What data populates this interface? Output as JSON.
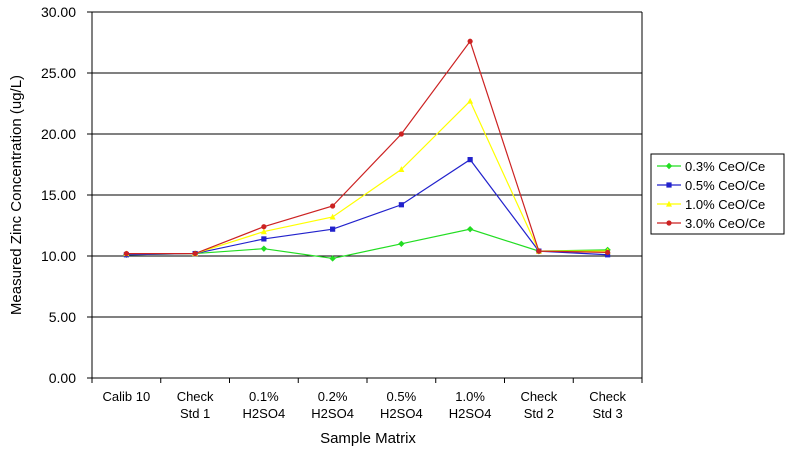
{
  "chart_data": {
    "type": "line",
    "title": "",
    "xlabel": "Sample Matrix",
    "ylabel": "Measured Zinc Concentration (ug/L)",
    "ylim": [
      0,
      30
    ],
    "ytick_step": 5,
    "ytick_labels": [
      "0.00",
      "5.00",
      "10.00",
      "15.00",
      "20.00",
      "25.00",
      "30.00"
    ],
    "categories": [
      [
        "Calib 10"
      ],
      [
        "Check",
        "Std 1"
      ],
      [
        "0.1%",
        "H2SO4"
      ],
      [
        "0.2%",
        "H2SO4"
      ],
      [
        "0.5%",
        "H2SO4"
      ],
      [
        "1.0%",
        "H2SO4"
      ],
      [
        "Check",
        "Std 2"
      ],
      [
        "Check",
        "Std 3"
      ]
    ],
    "grid": "horizontal",
    "legend_position": "right",
    "series": [
      {
        "name": "0.3% CeO/Ce",
        "color": "#22dd22",
        "marker": "diamond",
        "values": [
          10.1,
          10.2,
          10.6,
          9.8,
          11.0,
          12.2,
          10.4,
          10.5
        ]
      },
      {
        "name": "0.5% CeO/Ce",
        "color": "#2222cc",
        "marker": "square",
        "values": [
          10.1,
          10.2,
          11.4,
          12.2,
          14.2,
          17.9,
          10.4,
          10.1
        ]
      },
      {
        "name": "1.0% CeO/Ce",
        "color": "#ffff00",
        "marker": "triangle",
        "values": [
          10.2,
          10.2,
          12.0,
          13.2,
          17.1,
          22.7,
          10.4,
          10.4
        ]
      },
      {
        "name": "3.0% CeO/Ce",
        "color": "#cc2222",
        "marker": "circle",
        "values": [
          10.2,
          10.2,
          12.4,
          14.1,
          20.0,
          27.6,
          10.4,
          10.3
        ]
      }
    ]
  }
}
